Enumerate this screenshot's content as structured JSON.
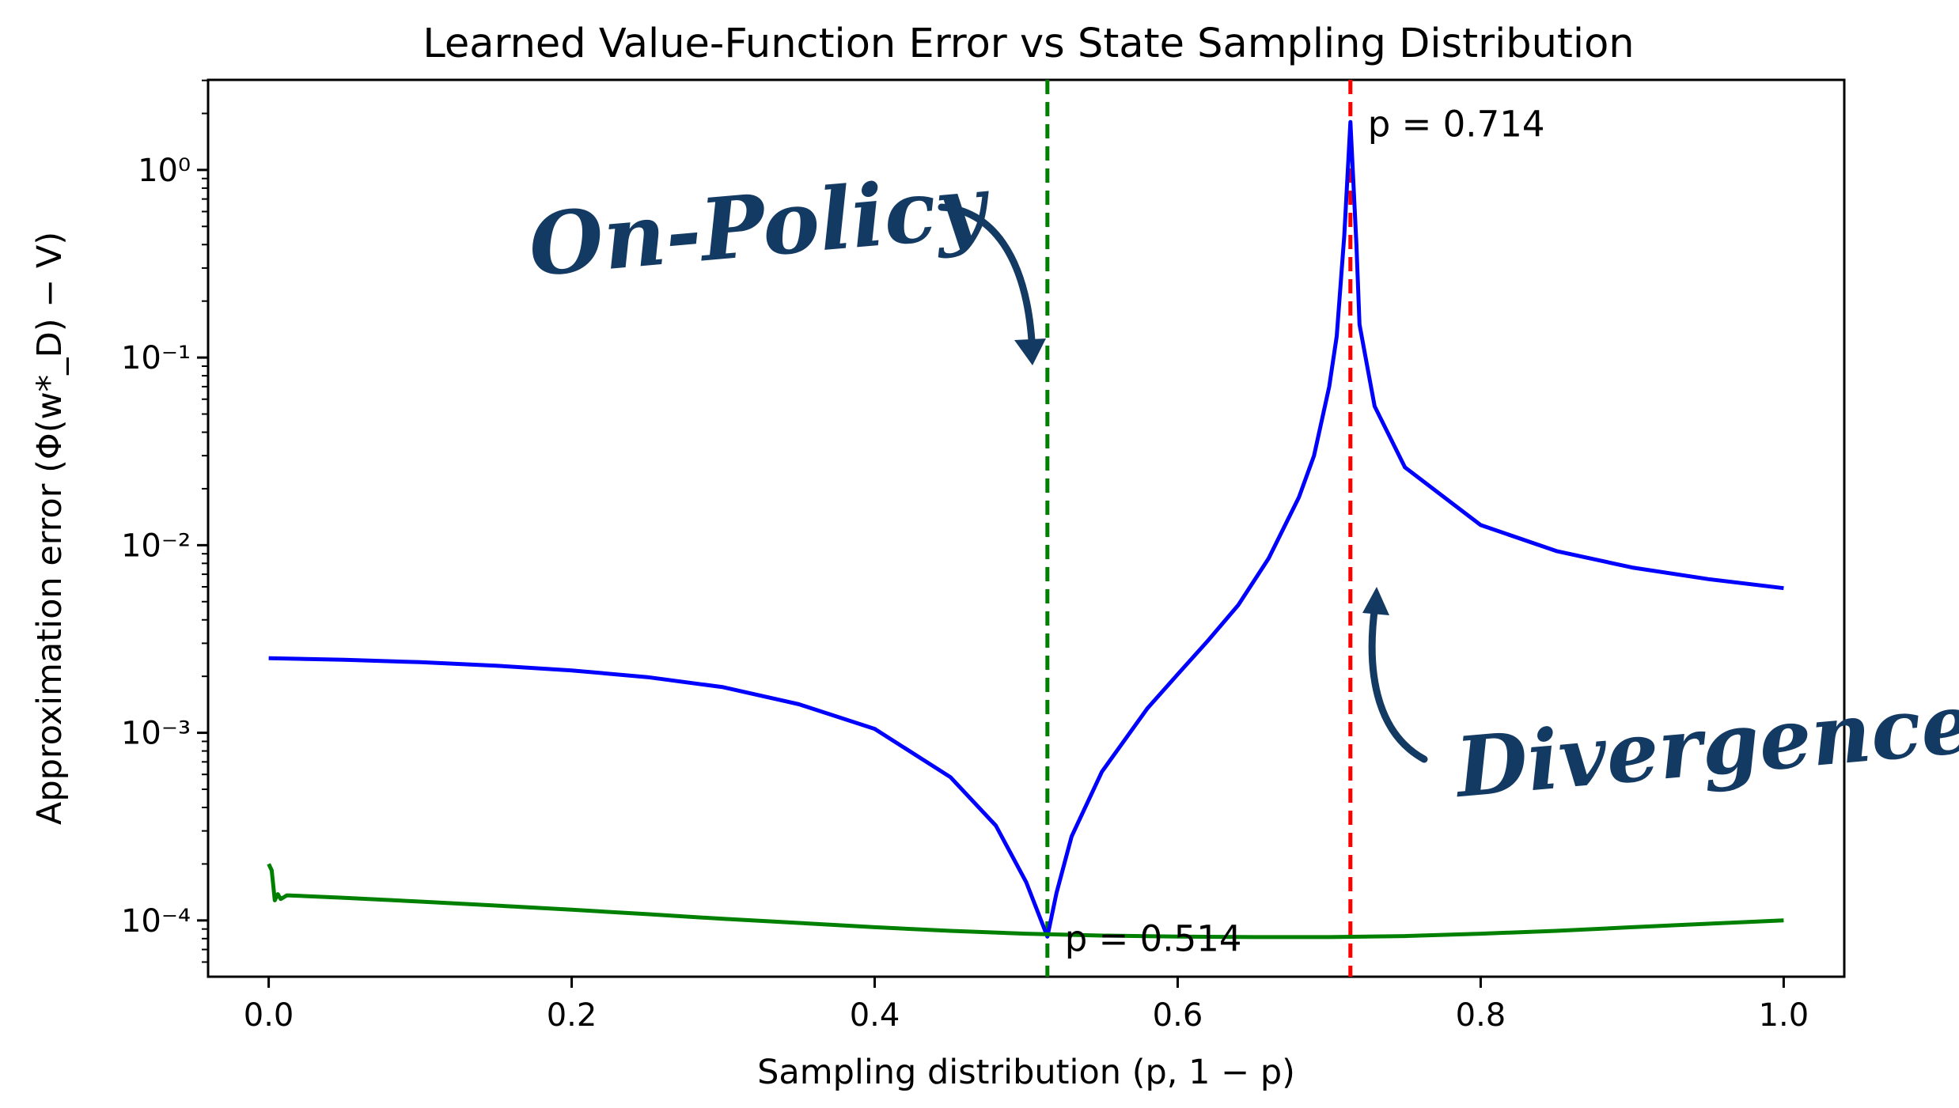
{
  "chart_data": {
    "type": "line",
    "title": "Learned Value-Function Error vs State Sampling Distribution",
    "xlabel": "Sampling distribution (p, 1 − p)",
    "ylabel": "Approximation error (Φ(w*_D) − V)",
    "xlim": [
      -0.04,
      1.04
    ],
    "ylim_log10": [
      -4.3,
      0.48
    ],
    "yscale": "log",
    "grid": false,
    "x_ticks": [
      0.0,
      0.2,
      0.4,
      0.6,
      0.8,
      1.0
    ],
    "x_tick_labels": [
      "0.0",
      "0.2",
      "0.4",
      "0.6",
      "0.8",
      "1.0"
    ],
    "y_ticks_log10": [
      0,
      -1,
      -2,
      -3,
      -4
    ],
    "y_tick_labels": [
      "10⁰",
      "10⁻¹",
      "10⁻²",
      "10⁻³",
      "10⁻⁴"
    ],
    "series": [
      {
        "color": "#0000ff",
        "points": [
          [
            0.0,
            0.0025
          ],
          [
            0.05,
            0.00245
          ],
          [
            0.1,
            0.00238
          ],
          [
            0.15,
            0.00228
          ],
          [
            0.2,
            0.00215
          ],
          [
            0.25,
            0.00198
          ],
          [
            0.3,
            0.00175
          ],
          [
            0.35,
            0.00142
          ],
          [
            0.4,
            0.00105
          ],
          [
            0.45,
            0.00058
          ],
          [
            0.48,
            0.00032
          ],
          [
            0.5,
            0.00016
          ],
          [
            0.514,
            8.2e-05
          ],
          [
            0.52,
            0.00014
          ],
          [
            0.53,
            0.00028
          ],
          [
            0.55,
            0.00062
          ],
          [
            0.58,
            0.00135
          ],
          [
            0.6,
            0.00205
          ],
          [
            0.62,
            0.0031
          ],
          [
            0.64,
            0.0048
          ],
          [
            0.66,
            0.0085
          ],
          [
            0.68,
            0.018
          ],
          [
            0.69,
            0.03
          ],
          [
            0.7,
            0.07
          ],
          [
            0.705,
            0.13
          ],
          [
            0.71,
            0.45
          ],
          [
            0.714,
            1.8
          ],
          [
            0.718,
            0.4
          ],
          [
            0.72,
            0.15
          ],
          [
            0.73,
            0.055
          ],
          [
            0.75,
            0.026
          ],
          [
            0.8,
            0.0128
          ],
          [
            0.85,
            0.0093
          ],
          [
            0.9,
            0.0076
          ],
          [
            0.95,
            0.0066
          ],
          [
            1.0,
            0.0059
          ]
        ]
      },
      {
        "color": "#008000",
        "points": [
          [
            0.0,
            0.0002
          ],
          [
            0.002,
            0.000185
          ],
          [
            0.004,
            0.000128
          ],
          [
            0.006,
            0.000138
          ],
          [
            0.008,
            0.00013
          ],
          [
            0.012,
            0.000136
          ],
          [
            0.05,
            0.000132
          ],
          [
            0.1,
            0.000126
          ],
          [
            0.15,
            0.00012
          ],
          [
            0.2,
            0.000114
          ],
          [
            0.25,
            0.000108
          ],
          [
            0.3,
            0.000102
          ],
          [
            0.35,
            9.7e-05
          ],
          [
            0.4,
            9.2e-05
          ],
          [
            0.45,
            8.8e-05
          ],
          [
            0.5,
            8.5e-05
          ],
          [
            0.55,
            8.3e-05
          ],
          [
            0.6,
            8.2e-05
          ],
          [
            0.65,
            8.15e-05
          ],
          [
            0.7,
            8.15e-05
          ],
          [
            0.75,
            8.25e-05
          ],
          [
            0.8,
            8.5e-05
          ],
          [
            0.85,
            8.8e-05
          ],
          [
            0.9,
            9.2e-05
          ],
          [
            0.95,
            9.6e-05
          ],
          [
            1.0,
            0.0001
          ]
        ]
      }
    ],
    "vlines": [
      {
        "x": 0.514,
        "color": "#008000",
        "style": "dashed",
        "label": "p = 0.514",
        "label_y": 8.2e-05
      },
      {
        "x": 0.714,
        "color": "#ff0000",
        "style": "dashed",
        "label": "p = 0.714",
        "label_y": 1.8
      }
    ],
    "annotations": [
      {
        "text": "On-Policy",
        "color": "#133a63"
      },
      {
        "text": "Divergence!",
        "color": "#133a63"
      }
    ]
  }
}
